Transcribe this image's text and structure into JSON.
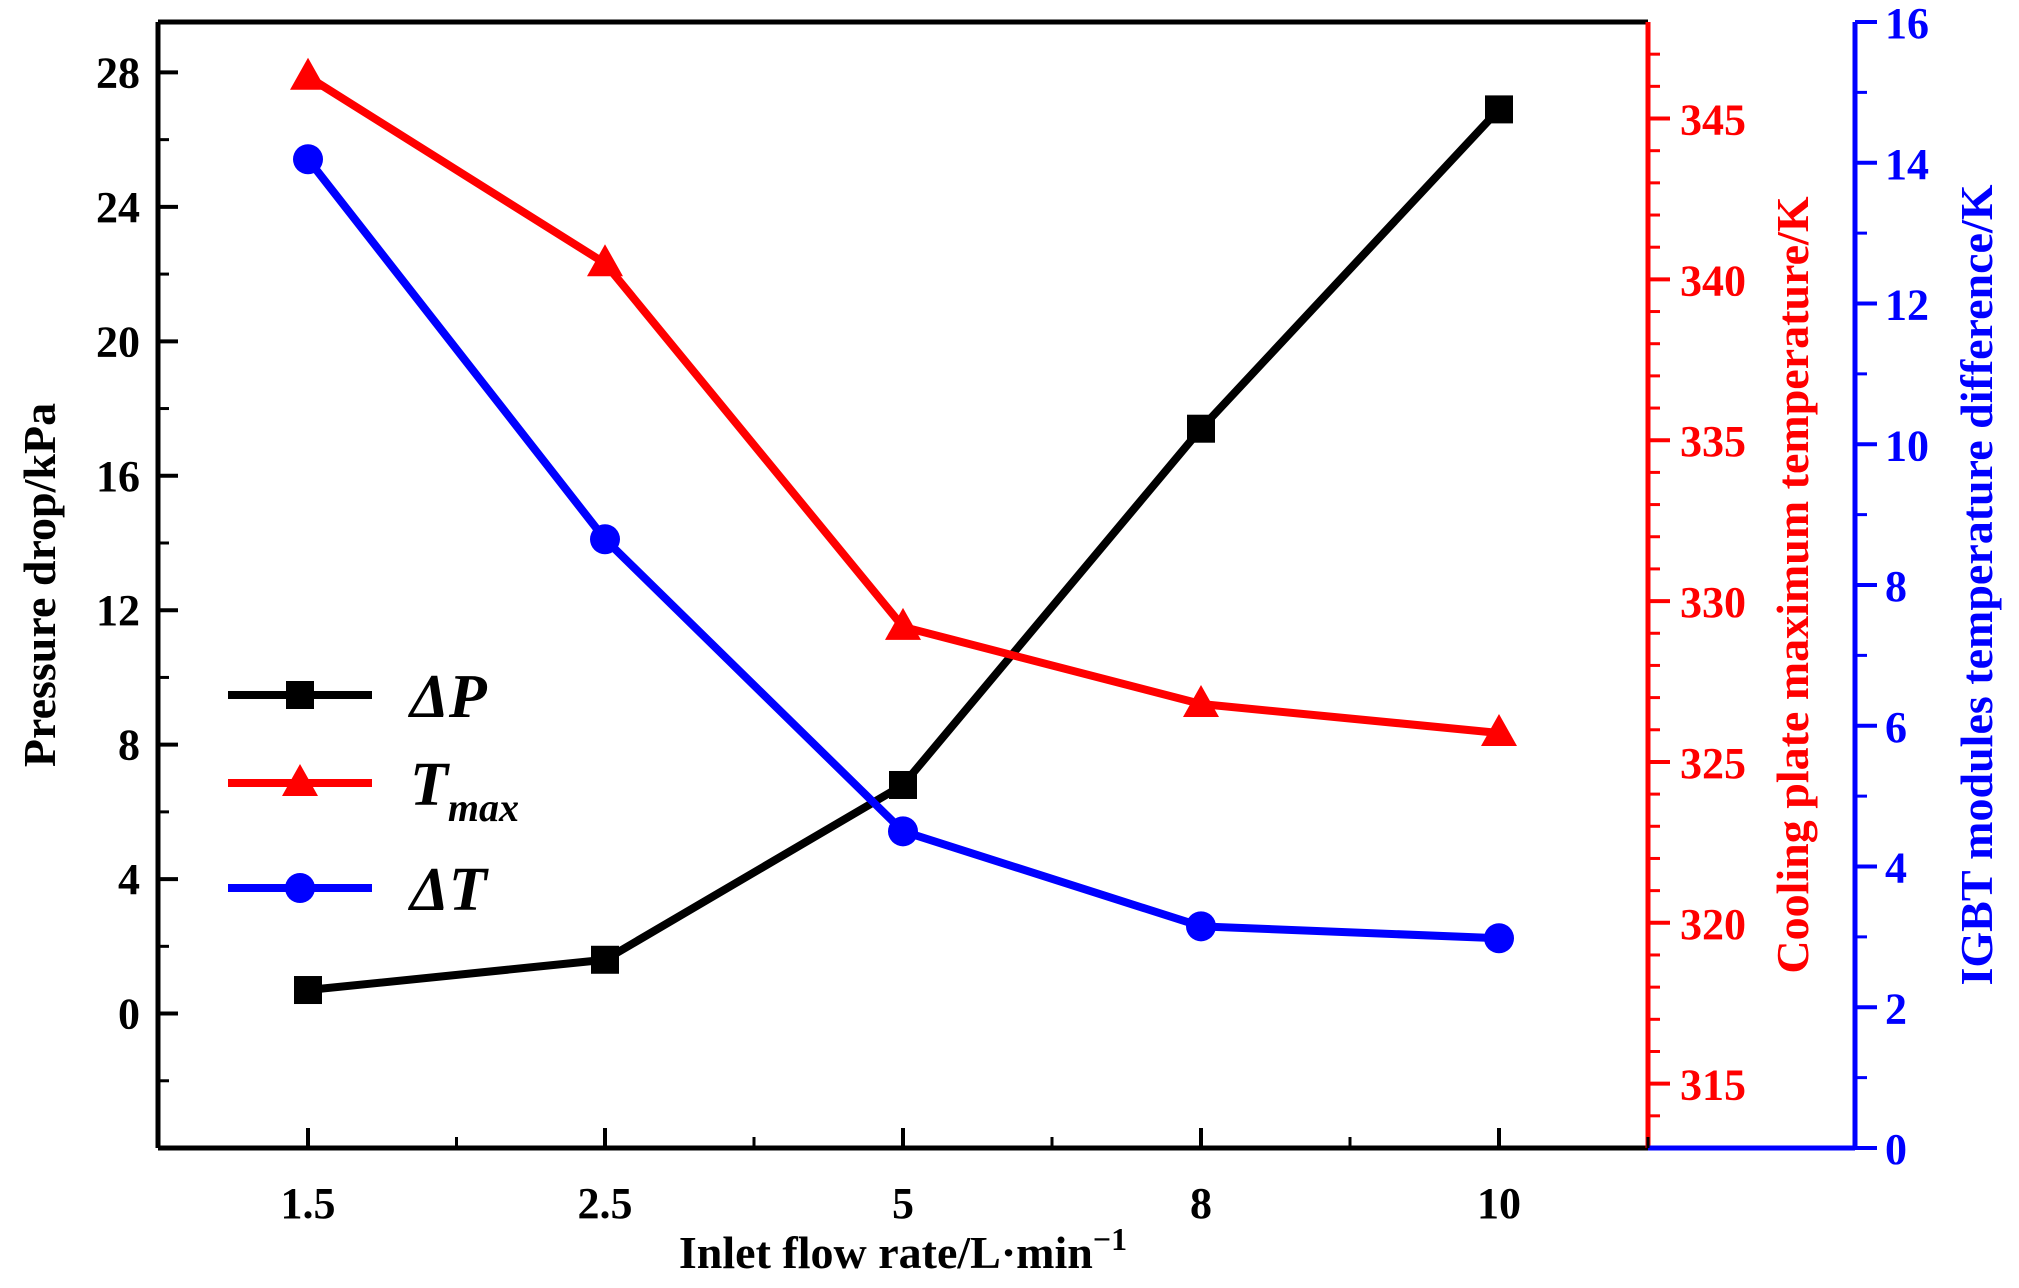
{
  "chart_data": {
    "type": "line",
    "title": "",
    "xlabel": "Inlet flow rate/L·min",
    "xlabel_sup": "−1",
    "categories": [
      "1.5",
      "2.5",
      "5",
      "8",
      "10"
    ],
    "axes": {
      "left": {
        "label": "Pressure drop/kPa",
        "ylim": [
          -4,
          29.5
        ],
        "ticks": [
          0,
          4,
          8,
          12,
          16,
          20,
          24,
          28
        ],
        "color": "#000000"
      },
      "right1": {
        "label": "Cooling plate maximum temperature/K",
        "ylim": [
          313,
          348
        ],
        "ticks": [
          315,
          320,
          325,
          330,
          335,
          340,
          345
        ],
        "color": "#ff0000"
      },
      "right2": {
        "label": "IGBT modules temperature difference/K",
        "ylim": [
          0,
          16
        ],
        "ticks": [
          0,
          2,
          4,
          6,
          8,
          10,
          12,
          14,
          16
        ],
        "color": "#0000ff"
      }
    },
    "series": [
      {
        "name": "ΔP",
        "legend_main": "ΔP",
        "axis": "left",
        "color": "#000000",
        "marker": "square",
        "values": [
          0.7,
          1.6,
          6.8,
          17.4,
          26.9
        ]
      },
      {
        "name": "Tmax",
        "legend_main": "T",
        "legend_sub": "max",
        "axis": "right1",
        "color": "#ff0000",
        "marker": "triangle",
        "values": [
          346.3,
          340.5,
          329.2,
          326.8,
          325.9
        ]
      },
      {
        "name": "ΔT",
        "legend_main": "ΔT",
        "axis": "right2",
        "color": "#0000ff",
        "marker": "circle",
        "values": [
          14.05,
          8.65,
          4.5,
          3.15,
          2.98
        ]
      }
    ],
    "legend_position": "middle-left"
  }
}
